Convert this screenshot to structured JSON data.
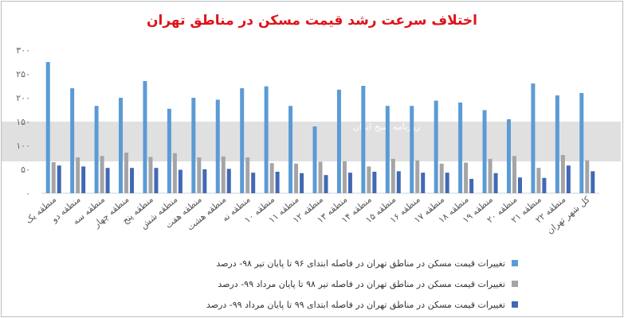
{
  "title": "اختلاف سرعت رشد قیمت مسکن در مناطق تهران",
  "watermark": "روزنامه صبح ایران",
  "chart_data": {
    "type": "bar",
    "title": "اختلاف سرعت رشد قیمت مسکن در مناطق تهران",
    "categories": [
      "منطقه یک",
      "منطقه دو",
      "منطقه سه",
      "منطقه چهار",
      "منطقه پنج",
      "منطقه شش",
      "منطقه هفت",
      "منطقه هشت",
      "منطقه نه",
      "منطقه ۱۰",
      "منطقه ۱۱",
      "منطقه ۱۲",
      "منطقه ۱۳",
      "منطقه ۱۴",
      "منطقه ۱۵",
      "منطقه ۱۶",
      "منطقه ۱۷",
      "منطقه ۱۸",
      "منطقه ۱۹",
      "منطقه ۲۰",
      "منطقه ۲۱",
      "منطقه ۲۲",
      "کل شهر تهران"
    ],
    "y_ticks": [
      "۰",
      "۵۰",
      "۱۰۰",
      "۱۵۰",
      "۲۰۰",
      "۲۵۰",
      "۳۰۰"
    ],
    "ylim": [
      0,
      300
    ],
    "grid": false,
    "legend_position": "bottom",
    "series": [
      {
        "name": "تغییرات قیمت مسکن در مناطق تهران در فاصله ابتدای ۹۶ تا پایان تیر ۹۸- درصد",
        "color": "#5b9bd5",
        "values": [
          275,
          220,
          183,
          200,
          235,
          177,
          200,
          196,
          220,
          224,
          183,
          140,
          217,
          225,
          183,
          183,
          194,
          190,
          174,
          155,
          230,
          205,
          210
        ]
      },
      {
        "name": "تغییرات قیمت مسکن در مناطق تهران در فاصله تیر ۹۸ تا پایان مرداد ۹۹- درصد",
        "color": "#a5a5a5",
        "values": [
          65,
          75,
          78,
          85,
          76,
          84,
          75,
          77,
          75,
          63,
          62,
          66,
          67,
          56,
          72,
          69,
          62,
          64,
          72,
          78,
          53,
          80,
          69
        ]
      },
      {
        "name": "تغییرات قیمت مسکن در مناطق تهران در فاصله ابتدای ۹۹ تا پایان مرداد ۹۹- درصد",
        "color": "#4169b5",
        "values": [
          58,
          56,
          53,
          53,
          53,
          49,
          50,
          51,
          43,
          45,
          42,
          38,
          43,
          45,
          46,
          43,
          43,
          30,
          42,
          33,
          32,
          58,
          46
        ]
      }
    ]
  }
}
